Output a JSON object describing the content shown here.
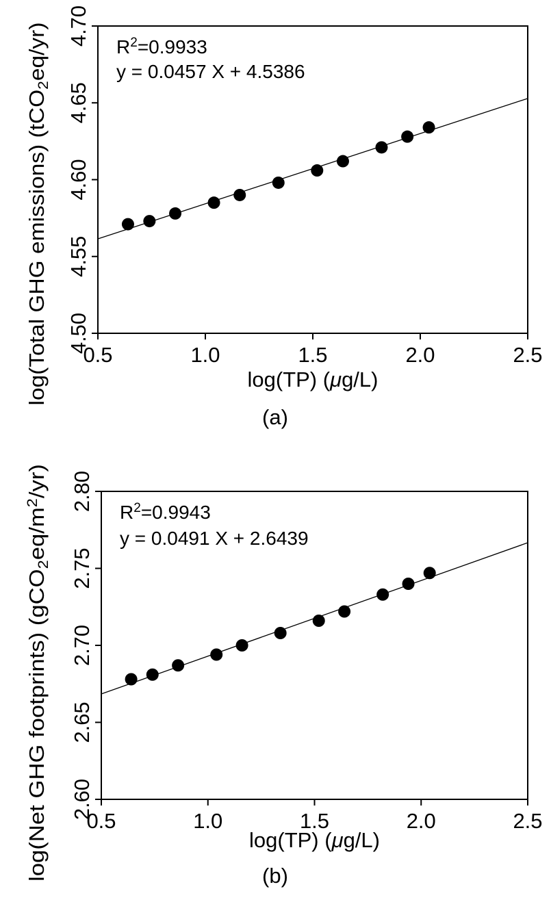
{
  "chart_data": [
    {
      "type": "scatter",
      "panel_label": "(a)",
      "title": "",
      "xlabel": "log(TP) (μg/L)",
      "ylabel": "log(Total GHG emissions) (tCO₂eq/yr)",
      "xlim": [
        0.5,
        2.5
      ],
      "ylim": [
        4.5,
        4.7
      ],
      "x_ticks": [
        "0.5",
        "1.0",
        "1.5",
        "2.0",
        "2.5"
      ],
      "y_ticks": [
        "4.50",
        "4.55",
        "4.60",
        "4.65",
        "4.70"
      ],
      "annotations": [
        "R²=0.9933",
        "y = 0.0457 X + 4.5386"
      ],
      "fit": {
        "slope": 0.0457,
        "intercept": 4.5386,
        "x_range": [
          0.5,
          2.5
        ]
      },
      "x": [
        0.64,
        0.74,
        0.86,
        1.04,
        1.16,
        1.34,
        1.52,
        1.64,
        1.82,
        1.94,
        2.04
      ],
      "y": [
        4.571,
        4.573,
        4.578,
        4.585,
        4.59,
        4.598,
        4.606,
        4.612,
        4.621,
        4.628,
        4.634
      ],
      "grid": false
    },
    {
      "type": "scatter",
      "panel_label": "(b)",
      "title": "",
      "xlabel": "log(TP) (μg/L)",
      "ylabel": "log(Net GHG footprints) (gCO₂eq/m²/yr)",
      "xlim": [
        0.5,
        2.5
      ],
      "ylim": [
        2.6,
        2.8
      ],
      "x_ticks": [
        "0.5",
        "1.0",
        "1.5",
        "2.0",
        "2.5"
      ],
      "y_ticks": [
        "2.60",
        "2.65",
        "2.70",
        "2.75",
        "2.80"
      ],
      "annotations": [
        "R²=0.9943",
        "y = 0.0491 X + 2.6439"
      ],
      "fit": {
        "slope": 0.0491,
        "intercept": 2.6439,
        "x_range": [
          0.5,
          2.5
        ]
      },
      "x": [
        0.64,
        0.74,
        0.86,
        1.04,
        1.16,
        1.34,
        1.52,
        1.64,
        1.82,
        1.94,
        2.04
      ],
      "y": [
        2.678,
        2.681,
        2.687,
        2.694,
        2.7,
        2.708,
        2.716,
        2.722,
        2.733,
        2.74,
        2.747
      ],
      "grid": false
    }
  ]
}
